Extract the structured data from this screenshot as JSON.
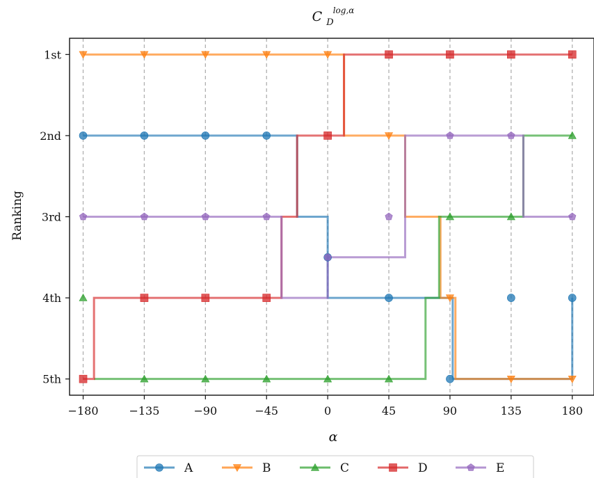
{
  "chart_data": {
    "type": "line",
    "title": "C_D^{log,α}",
    "title_main": "C",
    "title_sub": "D",
    "title_sup": "log,α",
    "xlabel": "α",
    "ylabel": "Ranking",
    "xlim": [
      -190,
      196
    ],
    "ylim": [
      5.2,
      0.8
    ],
    "xticks": [
      -180,
      -135,
      -90,
      -45,
      0,
      45,
      90,
      135,
      180
    ],
    "xtick_labels": [
      "−180",
      "−135",
      "−90",
      "−45",
      "0",
      "45",
      "90",
      "135",
      "180"
    ],
    "yticks": [
      1,
      2,
      3,
      4,
      5
    ],
    "ytick_labels": [
      "1st",
      "2nd",
      "3rd",
      "4th",
      "5th"
    ],
    "grid": "vertical dashed",
    "legend_position": "bottom-center",
    "step": "post",
    "series": [
      {
        "name": "A",
        "color": "#1f77b4",
        "marker": "circle",
        "x": [
          -180,
          -22.5,
          0,
          92,
          180
        ],
        "y": [
          2,
          3,
          4,
          5,
          4
        ],
        "marker_x": [
          -180,
          -135,
          -90,
          -45,
          0,
          45,
          90,
          135,
          180
        ],
        "marker_y": [
          2,
          2,
          2,
          2,
          3.5,
          4,
          5,
          4,
          4
        ]
      },
      {
        "name": "B",
        "color": "#ff7f0e",
        "marker": "triangle-down",
        "x": [
          -180,
          12,
          57,
          83,
          94,
          180
        ],
        "y": [
          1,
          2,
          3,
          4,
          5,
          5
        ],
        "marker_x": [
          -180,
          -135,
          -90,
          -45,
          0,
          45,
          90,
          135,
          180
        ],
        "marker_y": [
          1,
          1,
          1,
          1,
          1,
          2,
          4,
          5,
          5
        ]
      },
      {
        "name": "C",
        "color": "#2ca02c",
        "marker": "triangle-up",
        "x": [
          -172,
          72,
          82,
          144,
          180
        ],
        "y": [
          5,
          4,
          3,
          2,
          2
        ],
        "marker_x": [
          -180,
          -135,
          -90,
          -45,
          0,
          45,
          90,
          135,
          180
        ],
        "marker_y": [
          4,
          5,
          5,
          5,
          5,
          5,
          3,
          3,
          2
        ]
      },
      {
        "name": "D",
        "color": "#d62728",
        "marker": "square",
        "x": [
          -180,
          -172,
          -34,
          -22.5,
          12,
          180
        ],
        "y": [
          5,
          4,
          3,
          2,
          1,
          1
        ],
        "marker_x": [
          -180,
          -135,
          -90,
          -45,
          0,
          45,
          90,
          135,
          180
        ],
        "marker_y": [
          5,
          4,
          4,
          4,
          2,
          1,
          1,
          1,
          1
        ]
      },
      {
        "name": "E",
        "color": "#9467bd",
        "marker": "pentagon",
        "x": [
          -180,
          -34,
          0,
          57,
          144,
          180
        ],
        "y": [
          3,
          4,
          3.5,
          2,
          3,
          3
        ],
        "marker_x": [
          -180,
          -135,
          -90,
          -45,
          0,
          45,
          90,
          135,
          180
        ],
        "marker_y": [
          3,
          3,
          3,
          3,
          3.5,
          3,
          2,
          2,
          3
        ]
      }
    ]
  }
}
